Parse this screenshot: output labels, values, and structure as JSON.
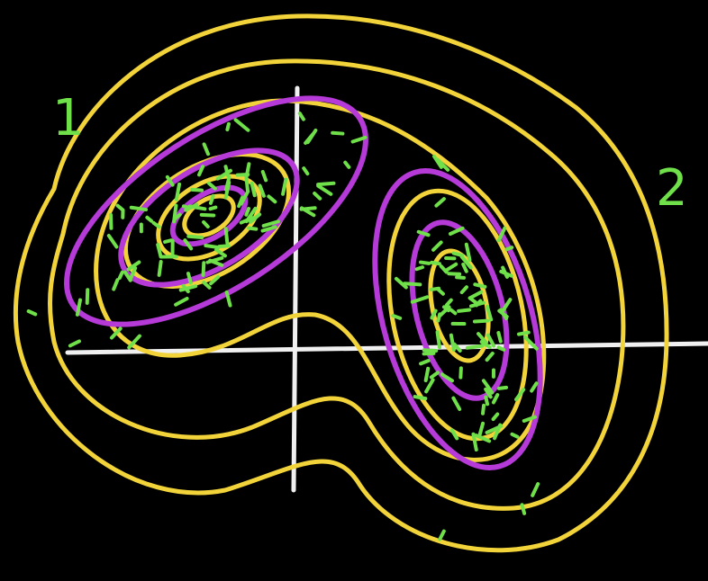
{
  "labels": {
    "cluster_1": "1",
    "cluster_2": "2"
  }
}
